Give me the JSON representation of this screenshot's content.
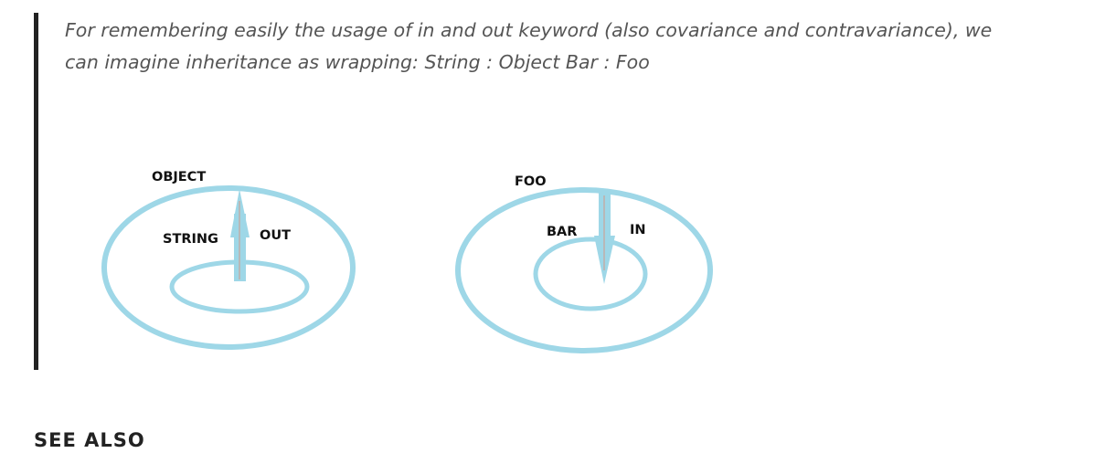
{
  "blockquote": {
    "text": "For remembering easily the usage of in and out keyword (also covariance and contravariance), we can imagine inheritance as wrapping: String : Object Bar : Foo"
  },
  "diagram": {
    "left": {
      "outer_label": "OBJECT",
      "inner_label": "STRING",
      "arrow_label": "OUT",
      "arrow_direction": "up"
    },
    "right": {
      "outer_label": "FOO",
      "inner_label": "BAR",
      "arrow_label": "IN",
      "arrow_direction": "down"
    },
    "ring_color": "#9ed7e7",
    "arrow_color": "#9ed7e7",
    "arrow_core_color": "#b8b8b8"
  },
  "section_heading": "SEE ALSO"
}
